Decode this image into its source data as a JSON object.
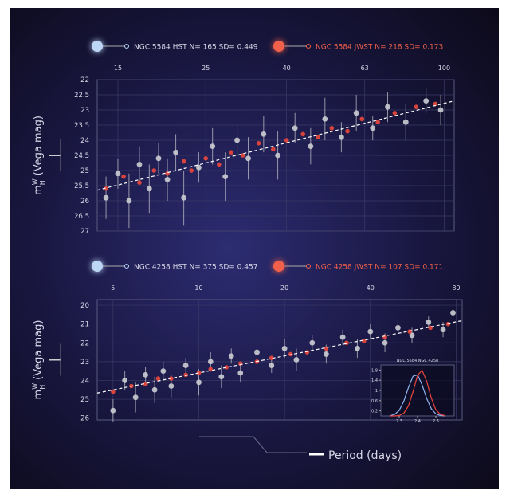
{
  "chart_data": [
    {
      "type": "scatter",
      "xscale": "log",
      "xlim": [
        13.3,
        106
      ],
      "xticks": [
        15,
        25,
        40,
        63,
        100
      ],
      "ylim": [
        27,
        22
      ],
      "yticks": [
        22,
        22.5,
        23,
        23.5,
        24,
        24.5,
        25,
        25.5,
        26,
        26.5,
        27
      ],
      "grid": true,
      "ylabel": {
        "symbol": "m",
        "superscript": "W",
        "subscript": "H",
        "unit": "(Vega mag)"
      },
      "series": [
        {
          "name": "NGC 5584 HST N=  165 SD= 0.449",
          "color": "#c9c9cf",
          "legend_color": "#bcd6f5",
          "x": [
            14,
            15,
            16,
            17,
            18,
            19,
            20,
            21,
            22,
            24,
            26,
            28,
            30,
            32,
            35,
            38,
            42,
            46,
            50,
            55,
            60,
            66,
            72,
            80,
            90,
            98
          ],
          "values": [
            25.9,
            25.1,
            26.0,
            24.8,
            25.6,
            24.6,
            25.3,
            24.4,
            25.9,
            24.9,
            24.2,
            25.2,
            24.0,
            24.6,
            23.8,
            24.5,
            23.6,
            24.2,
            23.3,
            23.9,
            23.1,
            23.6,
            22.9,
            23.4,
            22.7,
            23.0
          ],
          "errors": [
            0.7,
            0.5,
            0.9,
            0.6,
            0.8,
            0.5,
            0.7,
            0.6,
            0.9,
            0.5,
            0.6,
            0.8,
            0.5,
            0.7,
            0.6,
            0.8,
            0.5,
            0.6,
            0.7,
            0.5,
            0.6,
            0.4,
            0.5,
            0.6,
            0.4,
            0.5
          ]
        },
        {
          "name": "NGC 5584 JWST N=  218  SD= 0.173",
          "color": "#e8463c",
          "legend_color": "#f0604a",
          "x": [
            14,
            15.5,
            17,
            18.5,
            20,
            22,
            23,
            25,
            27,
            29,
            31,
            34,
            37,
            40,
            44,
            48,
            52,
            57,
            62,
            68,
            75,
            85,
            95
          ],
          "values": [
            25.6,
            25.2,
            25.4,
            25.0,
            25.1,
            24.7,
            25.0,
            24.6,
            24.8,
            24.4,
            24.5,
            24.1,
            24.3,
            24.0,
            23.8,
            23.9,
            23.6,
            23.7,
            23.3,
            23.4,
            23.1,
            22.9,
            22.8
          ]
        }
      ],
      "fit": {
        "x": [
          13.3,
          106
        ],
        "values": [
          25.65,
          22.7
        ]
      }
    },
    {
      "type": "scatter",
      "xscale": "log",
      "xlim": [
        4.4,
        84
      ],
      "xticks": [
        5,
        10,
        20,
        40,
        80
      ],
      "ylim": [
        26.1,
        19.7
      ],
      "yticks": [
        20,
        21,
        22,
        23,
        24,
        25,
        26
      ],
      "grid": true,
      "ylabel": {
        "symbol": "m",
        "superscript": "W",
        "subscript": "H",
        "unit": "(Vega mag)"
      },
      "series": [
        {
          "name": "NGC 4258 HST N=  375 SD= 0.457",
          "color": "#c9c9cf",
          "legend_color": "#bcd6f5",
          "x": [
            5,
            5.5,
            6,
            6.5,
            7,
            7.5,
            8,
            9,
            10,
            11,
            12,
            13,
            14,
            16,
            18,
            20,
            22,
            25,
            28,
            32,
            36,
            40,
            45,
            50,
            56,
            64,
            72,
            78
          ],
          "values": [
            25.6,
            24.0,
            24.9,
            23.7,
            24.5,
            23.5,
            24.3,
            23.2,
            24.1,
            23.0,
            23.8,
            22.7,
            23.6,
            22.5,
            23.2,
            22.3,
            22.9,
            22.0,
            22.6,
            21.7,
            22.3,
            21.4,
            22.0,
            21.2,
            21.6,
            20.9,
            21.3,
            20.4
          ],
          "errors": [
            0.6,
            0.5,
            0.8,
            0.4,
            0.7,
            0.5,
            0.6,
            0.4,
            0.7,
            0.5,
            0.6,
            0.4,
            0.5,
            0.6,
            0.4,
            0.5,
            0.6,
            0.4,
            0.5,
            0.4,
            0.5,
            0.4,
            0.5,
            0.4,
            0.4,
            0.3,
            0.4,
            0.3
          ]
        },
        {
          "name": "NGC 4258 JWST N=  107  SD= 0.171",
          "color": "#e8463c",
          "legend_color": "#f0604a",
          "x": [
            5,
            5.8,
            6.5,
            7.2,
            8,
            9,
            10,
            11,
            12.5,
            14,
            16,
            18,
            21,
            24,
            28,
            33,
            38,
            45,
            55,
            65,
            75
          ],
          "values": [
            24.6,
            24.3,
            24.2,
            23.9,
            23.9,
            23.7,
            23.6,
            23.4,
            23.3,
            23.1,
            23.0,
            22.8,
            22.6,
            22.5,
            22.3,
            22.0,
            21.9,
            21.7,
            21.4,
            21.2,
            21.0
          ]
        }
      ],
      "fit": {
        "x": [
          4.4,
          84
        ],
        "values": [
          24.67,
          20.82
        ]
      }
    },
    {
      "type": "line",
      "title": "NGC 5584  NGC 4258",
      "xlim": [
        2.2,
        2.6
      ],
      "xticks": [
        2.3,
        2.4,
        2.5
      ],
      "ylim": [
        0,
        2
      ],
      "yticks": [
        0.2,
        0.6,
        1.0,
        1.4,
        1.8
      ],
      "x": [
        2.25,
        2.275,
        2.3,
        2.325,
        2.35,
        2.375,
        2.4,
        2.425,
        2.45,
        2.475,
        2.5,
        2.525,
        2.55
      ],
      "series": [
        {
          "color": "#8fb3f0",
          "values": [
            0.01,
            0.06,
            0.22,
            0.58,
            1.11,
            1.56,
            1.61,
            1.22,
            0.68,
            0.28,
            0.08,
            0.02,
            0
          ]
        },
        {
          "color": "#e8463c",
          "values": [
            0,
            0,
            0.02,
            0.11,
            0.39,
            0.95,
            1.59,
            1.79,
            1.36,
            0.7,
            0.24,
            0.06,
            0.01
          ]
        }
      ]
    }
  ],
  "footer": {
    "xlabel": "Period (days)"
  }
}
